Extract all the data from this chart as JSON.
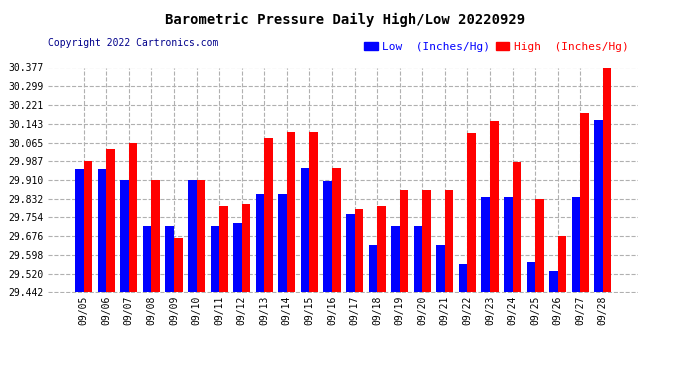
{
  "title": "Barometric Pressure Daily High/Low 20220929",
  "copyright": "Copyright 2022 Cartronics.com",
  "legend_low": "Low  (Inches/Hg)",
  "legend_high": "High  (Inches/Hg)",
  "dates": [
    "09/05",
    "09/06",
    "09/07",
    "09/08",
    "09/09",
    "09/10",
    "09/11",
    "09/12",
    "09/13",
    "09/14",
    "09/15",
    "09/16",
    "09/17",
    "09/18",
    "09/19",
    "09/20",
    "09/21",
    "09/22",
    "09/23",
    "09/24",
    "09/25",
    "09/26",
    "09/27",
    "09/28"
  ],
  "low_values": [
    29.955,
    29.955,
    29.91,
    29.72,
    29.72,
    29.91,
    29.72,
    29.73,
    29.85,
    29.85,
    29.96,
    29.905,
    29.77,
    29.64,
    29.72,
    29.72,
    29.64,
    29.56,
    29.84,
    29.84,
    29.57,
    29.53,
    29.84,
    30.16
  ],
  "high_values": [
    29.988,
    30.038,
    30.062,
    29.91,
    29.668,
    29.91,
    29.8,
    29.81,
    30.082,
    30.108,
    30.108,
    29.96,
    29.79,
    29.8,
    29.87,
    29.87,
    29.87,
    30.105,
    30.155,
    29.985,
    29.83,
    29.676,
    30.188,
    30.377
  ],
  "ylim_min": 29.442,
  "ylim_max": 30.377,
  "yticks": [
    29.442,
    29.52,
    29.598,
    29.676,
    29.754,
    29.832,
    29.91,
    29.987,
    30.065,
    30.143,
    30.221,
    30.299,
    30.377
  ],
  "bar_color_low": "#0000ff",
  "bar_color_high": "#ff0000",
  "background_color": "#ffffff",
  "grid_color": "#b0b0b0",
  "title_color": "#000000",
  "copyright_color": "#00008b",
  "title_fontsize": 10,
  "copyright_fontsize": 7,
  "tick_fontsize": 7,
  "legend_fontsize": 8
}
